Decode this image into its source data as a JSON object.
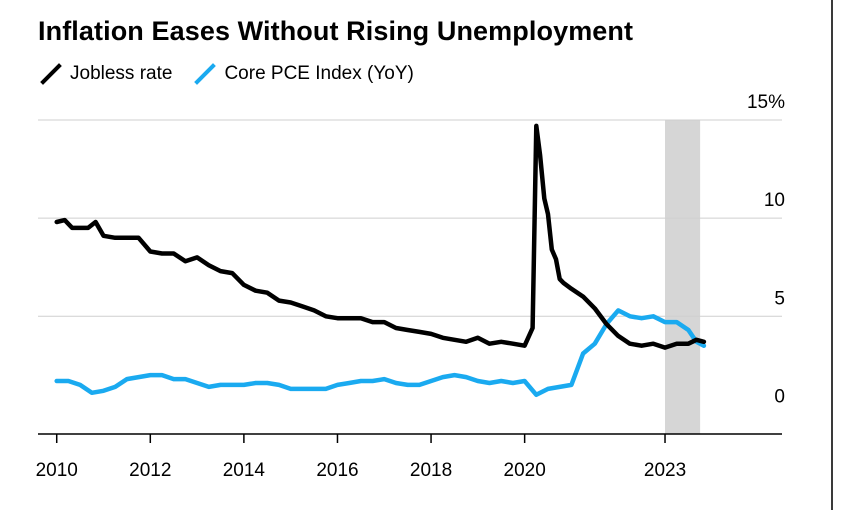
{
  "title": "Inflation Eases Without Rising Unemployment",
  "colors": {
    "jobless": "#000000",
    "pce": "#1aaaf0",
    "shade": "#d6d6d6",
    "axis": "#000000",
    "grid": "#cfcfcf"
  },
  "chart_data": {
    "type": "line",
    "title": "Inflation Eases Without Rising Unemployment",
    "xlabel": "",
    "ylabel": "",
    "xlim": [
      2009.6,
      2025.5
    ],
    "ylim": [
      -1,
      15
    ],
    "x_ticks": [
      2010,
      2012,
      2014,
      2016,
      2018,
      2020,
      2023
    ],
    "x_tick_labels": [
      "2010",
      "2012",
      "2014",
      "2016",
      "2018",
      "2020",
      "2023"
    ],
    "y_ticks": [
      0,
      5,
      10,
      15
    ],
    "y_tick_labels": [
      "0",
      "5",
      "10",
      "15%"
    ],
    "grid": "horizontal",
    "legend_position": "top-left",
    "shaded_region": [
      2023.0,
      2023.75
    ],
    "series": [
      {
        "name": "Jobless rate",
        "color": "#000000",
        "points": [
          [
            2010.0,
            9.8
          ],
          [
            2010.17,
            9.9
          ],
          [
            2010.33,
            9.5
          ],
          [
            2010.5,
            9.5
          ],
          [
            2010.67,
            9.5
          ],
          [
            2010.83,
            9.8
          ],
          [
            2011.0,
            9.1
          ],
          [
            2011.25,
            9.0
          ],
          [
            2011.5,
            9.0
          ],
          [
            2011.75,
            9.0
          ],
          [
            2012.0,
            8.3
          ],
          [
            2012.25,
            8.2
          ],
          [
            2012.5,
            8.2
          ],
          [
            2012.75,
            7.8
          ],
          [
            2013.0,
            8.0
          ],
          [
            2013.25,
            7.6
          ],
          [
            2013.5,
            7.3
          ],
          [
            2013.75,
            7.2
          ],
          [
            2014.0,
            6.6
          ],
          [
            2014.25,
            6.3
          ],
          [
            2014.5,
            6.2
          ],
          [
            2014.75,
            5.8
          ],
          [
            2015.0,
            5.7
          ],
          [
            2015.25,
            5.5
          ],
          [
            2015.5,
            5.3
          ],
          [
            2015.75,
            5.0
          ],
          [
            2016.0,
            4.9
          ],
          [
            2016.25,
            4.9
          ],
          [
            2016.5,
            4.9
          ],
          [
            2016.75,
            4.7
          ],
          [
            2017.0,
            4.7
          ],
          [
            2017.25,
            4.4
          ],
          [
            2017.5,
            4.3
          ],
          [
            2017.75,
            4.2
          ],
          [
            2018.0,
            4.1
          ],
          [
            2018.25,
            3.9
          ],
          [
            2018.5,
            3.8
          ],
          [
            2018.75,
            3.7
          ],
          [
            2019.0,
            3.9
          ],
          [
            2019.25,
            3.6
          ],
          [
            2019.5,
            3.7
          ],
          [
            2019.75,
            3.6
          ],
          [
            2020.0,
            3.5
          ],
          [
            2020.17,
            4.4
          ],
          [
            2020.25,
            14.7
          ],
          [
            2020.33,
            13.2
          ],
          [
            2020.42,
            11.0
          ],
          [
            2020.5,
            10.2
          ],
          [
            2020.58,
            8.4
          ],
          [
            2020.67,
            7.9
          ],
          [
            2020.75,
            6.9
          ],
          [
            2020.83,
            6.7
          ],
          [
            2021.0,
            6.4
          ],
          [
            2021.25,
            6.0
          ],
          [
            2021.5,
            5.4
          ],
          [
            2021.75,
            4.6
          ],
          [
            2022.0,
            4.0
          ],
          [
            2022.25,
            3.6
          ],
          [
            2022.5,
            3.5
          ],
          [
            2022.75,
            3.6
          ],
          [
            2023.0,
            3.4
          ],
          [
            2023.25,
            3.6
          ],
          [
            2023.5,
            3.6
          ],
          [
            2023.67,
            3.8
          ],
          [
            2023.83,
            3.7
          ]
        ]
      },
      {
        "name": "Core PCE Index (YoY)",
        "color": "#1aaaf0",
        "points": [
          [
            2010.0,
            1.7
          ],
          [
            2010.25,
            1.7
          ],
          [
            2010.5,
            1.5
          ],
          [
            2010.75,
            1.1
          ],
          [
            2011.0,
            1.2
          ],
          [
            2011.25,
            1.4
          ],
          [
            2011.5,
            1.8
          ],
          [
            2011.75,
            1.9
          ],
          [
            2012.0,
            2.0
          ],
          [
            2012.25,
            2.0
          ],
          [
            2012.5,
            1.8
          ],
          [
            2012.75,
            1.8
          ],
          [
            2013.0,
            1.6
          ],
          [
            2013.25,
            1.4
          ],
          [
            2013.5,
            1.5
          ],
          [
            2013.75,
            1.5
          ],
          [
            2014.0,
            1.5
          ],
          [
            2014.25,
            1.6
          ],
          [
            2014.5,
            1.6
          ],
          [
            2014.75,
            1.5
          ],
          [
            2015.0,
            1.3
          ],
          [
            2015.25,
            1.3
          ],
          [
            2015.5,
            1.3
          ],
          [
            2015.75,
            1.3
          ],
          [
            2016.0,
            1.5
          ],
          [
            2016.25,
            1.6
          ],
          [
            2016.5,
            1.7
          ],
          [
            2016.75,
            1.7
          ],
          [
            2017.0,
            1.8
          ],
          [
            2017.25,
            1.6
          ],
          [
            2017.5,
            1.5
          ],
          [
            2017.75,
            1.5
          ],
          [
            2018.0,
            1.7
          ],
          [
            2018.25,
            1.9
          ],
          [
            2018.5,
            2.0
          ],
          [
            2018.75,
            1.9
          ],
          [
            2019.0,
            1.7
          ],
          [
            2019.25,
            1.6
          ],
          [
            2019.5,
            1.7
          ],
          [
            2019.75,
            1.6
          ],
          [
            2020.0,
            1.7
          ],
          [
            2020.25,
            1.0
          ],
          [
            2020.5,
            1.3
          ],
          [
            2020.75,
            1.4
          ],
          [
            2021.0,
            1.5
          ],
          [
            2021.25,
            3.1
          ],
          [
            2021.5,
            3.6
          ],
          [
            2021.75,
            4.6
          ],
          [
            2022.0,
            5.3
          ],
          [
            2022.25,
            5.0
          ],
          [
            2022.5,
            4.9
          ],
          [
            2022.75,
            5.0
          ],
          [
            2023.0,
            4.7
          ],
          [
            2023.25,
            4.7
          ],
          [
            2023.5,
            4.3
          ],
          [
            2023.67,
            3.7
          ],
          [
            2023.83,
            3.5
          ]
        ]
      }
    ]
  }
}
